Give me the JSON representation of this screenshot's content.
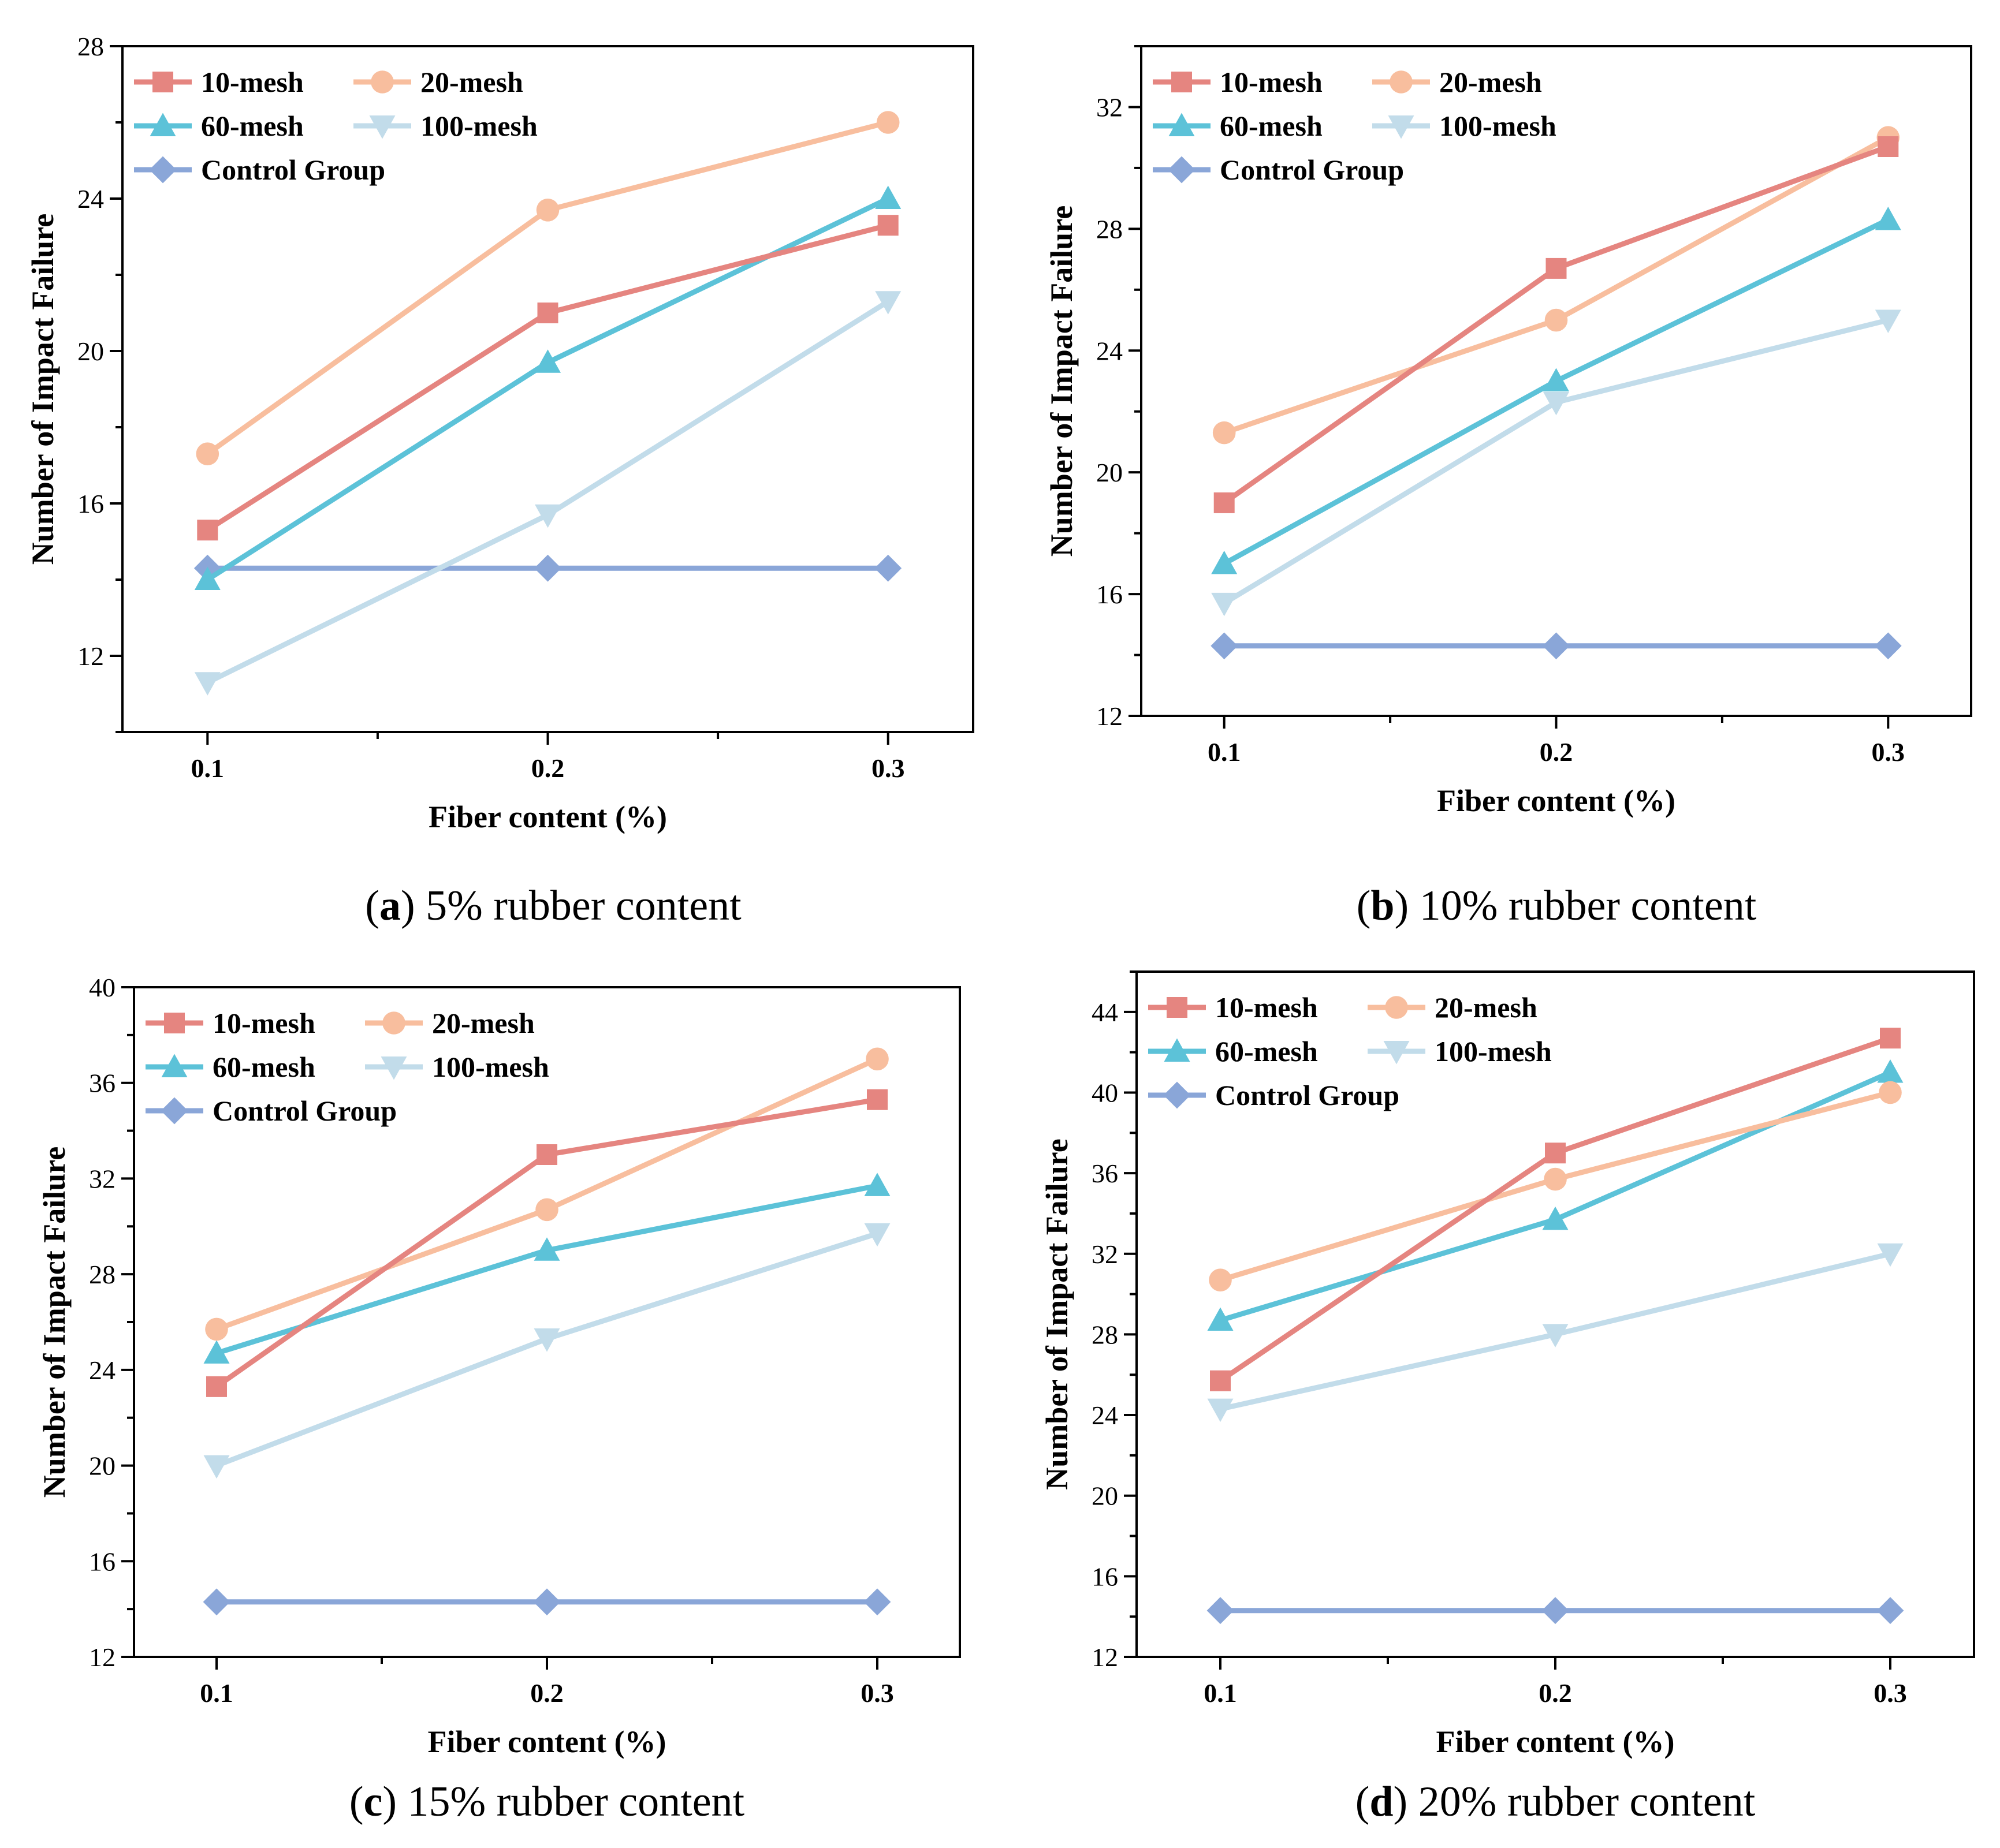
{
  "styles": {
    "10-mesh": {
      "color": "#E58580",
      "marker": "square"
    },
    "20-mesh": {
      "color": "#F8BE9E",
      "marker": "circle"
    },
    "60-mesh": {
      "color": "#5CC2D8",
      "marker": "triangle-up"
    },
    "100-mesh": {
      "color": "#C2DCEA",
      "marker": "triangle-down"
    },
    "Control Group": {
      "color": "#8AA6D8",
      "marker": "diamond"
    }
  },
  "chart_data": [
    {
      "panel": "a",
      "caption_letter": "a",
      "caption_text": " 5% rubber content",
      "type": "line",
      "x": [
        0.1,
        0.2,
        0.3
      ],
      "xticks": [
        "0.1",
        "0.2",
        "0.3"
      ],
      "xlabel": "Fiber content (%)",
      "ylabel": "Number of Impact Failure",
      "ylim": [
        10,
        28
      ],
      "yticks": [
        12,
        16,
        20,
        24,
        28
      ],
      "legend_position": "top-left",
      "series": [
        {
          "name": "10-mesh",
          "values": [
            15.3,
            21.0,
            23.3
          ]
        },
        {
          "name": "20-mesh",
          "values": [
            17.3,
            23.7,
            26.0
          ]
        },
        {
          "name": "60-mesh",
          "values": [
            14.0,
            19.7,
            24.0
          ]
        },
        {
          "name": "100-mesh",
          "values": [
            11.3,
            15.7,
            21.3
          ]
        },
        {
          "name": "Control Group",
          "values": [
            14.3,
            14.3,
            14.3
          ]
        }
      ]
    },
    {
      "panel": "b",
      "caption_letter": "b",
      "caption_text": " 10% rubber content",
      "type": "line",
      "x": [
        0.1,
        0.2,
        0.3
      ],
      "xticks": [
        "0.1",
        "0.2",
        "0.3"
      ],
      "xlabel": "Fiber content (%)",
      "ylabel": "Number of Impact Failure",
      "ylim": [
        12,
        34
      ],
      "yticks": [
        12,
        16,
        20,
        24,
        28,
        32
      ],
      "legend_position": "top-left",
      "series": [
        {
          "name": "10-mesh",
          "values": [
            19.0,
            26.7,
            30.7
          ]
        },
        {
          "name": "20-mesh",
          "values": [
            21.3,
            25.0,
            31.0
          ]
        },
        {
          "name": "60-mesh",
          "values": [
            17.0,
            23.0,
            28.3
          ]
        },
        {
          "name": "100-mesh",
          "values": [
            15.7,
            22.3,
            25.0
          ]
        },
        {
          "name": "Control Group",
          "values": [
            14.3,
            14.3,
            14.3
          ]
        }
      ]
    },
    {
      "panel": "c",
      "caption_letter": "c",
      "caption_text": " 15% rubber content",
      "type": "line",
      "x": [
        0.1,
        0.2,
        0.3
      ],
      "xticks": [
        "0.1",
        "0.2",
        "0.3"
      ],
      "xlabel": "Fiber content (%)",
      "ylabel": "Number of Impact Failure",
      "ylim": [
        12,
        40
      ],
      "yticks": [
        12,
        16,
        20,
        24,
        28,
        32,
        36,
        40
      ],
      "legend_position": "top-left",
      "series": [
        {
          "name": "10-mesh",
          "values": [
            23.3,
            33.0,
            35.3
          ]
        },
        {
          "name": "20-mesh",
          "values": [
            25.7,
            30.7,
            37.0
          ]
        },
        {
          "name": "60-mesh",
          "values": [
            24.7,
            29.0,
            31.7
          ]
        },
        {
          "name": "100-mesh",
          "values": [
            20.0,
            25.3,
            29.7
          ]
        },
        {
          "name": "Control Group",
          "values": [
            14.3,
            14.3,
            14.3
          ]
        }
      ]
    },
    {
      "panel": "d",
      "caption_letter": "d",
      "caption_text": " 20% rubber content",
      "type": "line",
      "x": [
        0.1,
        0.2,
        0.3
      ],
      "xticks": [
        "0.1",
        "0.2",
        "0.3"
      ],
      "xlabel": "Fiber content (%)",
      "ylabel": "Number of Impact Failure",
      "ylim": [
        12,
        46
      ],
      "yticks": [
        12,
        16,
        20,
        24,
        28,
        32,
        36,
        40,
        44
      ],
      "legend_position": "top-left",
      "series": [
        {
          "name": "10-mesh",
          "values": [
            25.7,
            37.0,
            42.7
          ]
        },
        {
          "name": "20-mesh",
          "values": [
            30.7,
            35.7,
            40.0
          ]
        },
        {
          "name": "60-mesh",
          "values": [
            28.7,
            33.7,
            41.0
          ]
        },
        {
          "name": "100-mesh",
          "values": [
            24.3,
            28.0,
            32.0
          ]
        },
        {
          "name": "Control Group",
          "values": [
            14.3,
            14.3,
            14.3
          ]
        }
      ]
    }
  ]
}
